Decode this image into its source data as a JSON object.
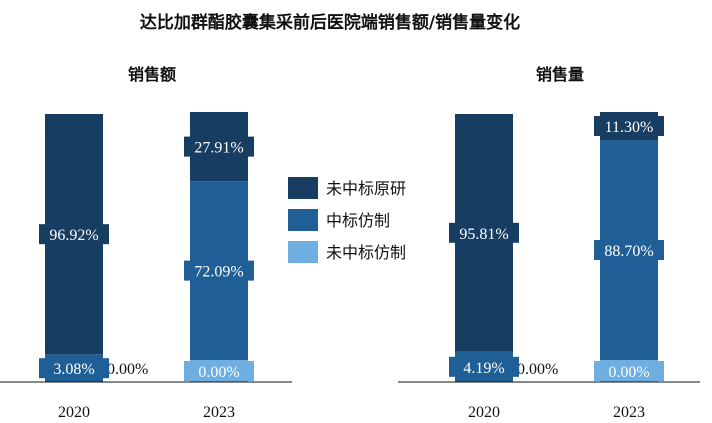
{
  "title": "达比加群酯胶囊集采前后医院端销售额/销售量变化",
  "legend": [
    {
      "name": "未中标原研",
      "color": "#173D63"
    },
    {
      "name": "中标仿制",
      "color": "#1F5F96"
    },
    {
      "name": "未中标仿制",
      "color": "#6FAEE0"
    }
  ],
  "chart_data": [
    {
      "type": "bar",
      "stacked": true,
      "title": "销售额",
      "categories": [
        "2020",
        "2023"
      ],
      "series": [
        {
          "name": "未中标仿制",
          "values": [
            0.0,
            0.0
          ],
          "labels": [
            "0.00%",
            "0.00%"
          ],
          "color": "#6FAEE0"
        },
        {
          "name": "中标仿制",
          "values": [
            3.08,
            72.09
          ],
          "labels": [
            "3.08%",
            "72.09%"
          ],
          "color": "#1F5F96"
        },
        {
          "name": "未中标原研",
          "values": [
            96.92,
            27.91
          ],
          "labels": [
            "96.92%",
            "27.91%"
          ],
          "color": "#173D63"
        }
      ],
      "ylim": [
        0,
        100
      ]
    },
    {
      "type": "bar",
      "stacked": true,
      "title": "销售量",
      "categories": [
        "2020",
        "2023"
      ],
      "series": [
        {
          "name": "未中标仿制",
          "values": [
            0.0,
            0.0
          ],
          "labels": [
            "0.00%",
            "0.00%"
          ],
          "color": "#6FAEE0"
        },
        {
          "name": "中标仿制",
          "values": [
            4.19,
            88.7
          ],
          "labels": [
            "4.19%",
            "88.70%"
          ],
          "color": "#1F5F96"
        },
        {
          "name": "未中标原研",
          "values": [
            95.81,
            11.3
          ],
          "labels": [
            "95.81%",
            "11.30%"
          ],
          "color": "#173D63"
        }
      ],
      "ylim": [
        0,
        100
      ]
    }
  ]
}
